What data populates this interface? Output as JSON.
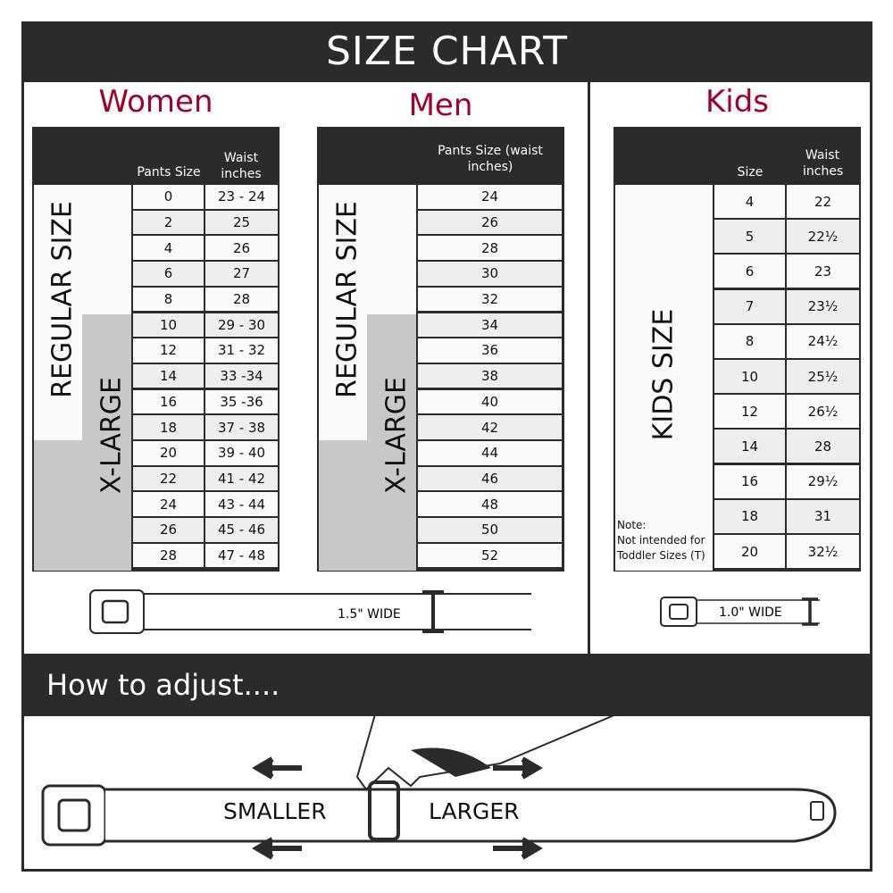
{
  "title": "SIZE CHART",
  "women": {
    "heading": "Women",
    "col1": "Pants Size",
    "col2": "Waist inches",
    "regular_label": "REGULAR SIZE",
    "xlarge_label": "X-LARGE",
    "rows": [
      [
        "0",
        "23 - 24"
      ],
      [
        "2",
        "25"
      ],
      [
        "4",
        "26"
      ],
      [
        "6",
        "27"
      ],
      [
        "8",
        "28"
      ],
      [
        "10",
        "29 - 30"
      ],
      [
        "12",
        "31 - 32"
      ],
      [
        "14",
        "33 -34"
      ],
      [
        "16",
        "35 -36"
      ],
      [
        "18",
        "37 - 38"
      ],
      [
        "20",
        "39 - 40"
      ],
      [
        "22",
        "41 - 42"
      ],
      [
        "24",
        "43 - 44"
      ],
      [
        "26",
        "45 - 46"
      ],
      [
        "28",
        "47 - 48"
      ]
    ],
    "belt_width": "1.5\" WIDE"
  },
  "men": {
    "heading": "Men",
    "col1": "Pants Size (waist inches)",
    "regular_label": "REGULAR SIZE",
    "xlarge_label": "X-LARGE",
    "rows": [
      "24",
      "26",
      "28",
      "30",
      "32",
      "34",
      "36",
      "38",
      "40",
      "42",
      "44",
      "46",
      "48",
      "50",
      "52"
    ]
  },
  "kids": {
    "heading": "Kids",
    "col1": "Size",
    "col2": "Waist inches",
    "label": "KIDS SIZE",
    "note_title": "Note:",
    "note_text": "Not intended for Toddler Sizes (T)",
    "rows": [
      [
        "4",
        "22"
      ],
      [
        "5",
        "22½"
      ],
      [
        "6",
        "23"
      ],
      [
        "7",
        "23½"
      ],
      [
        "8",
        "24½"
      ],
      [
        "10",
        "25½"
      ],
      [
        "12",
        "26½"
      ],
      [
        "14",
        "28"
      ],
      [
        "16",
        "29½"
      ],
      [
        "18",
        "31"
      ],
      [
        "20",
        "32½"
      ]
    ],
    "belt_width": "1.0\" WIDE"
  },
  "adjust": {
    "heading": "How to adjust....",
    "smaller": "SMALLER",
    "larger": "LARGER"
  },
  "colors": {
    "dark": "#2b2b2b",
    "accent": "#a3002a",
    "gray": "#c8c8c8"
  }
}
